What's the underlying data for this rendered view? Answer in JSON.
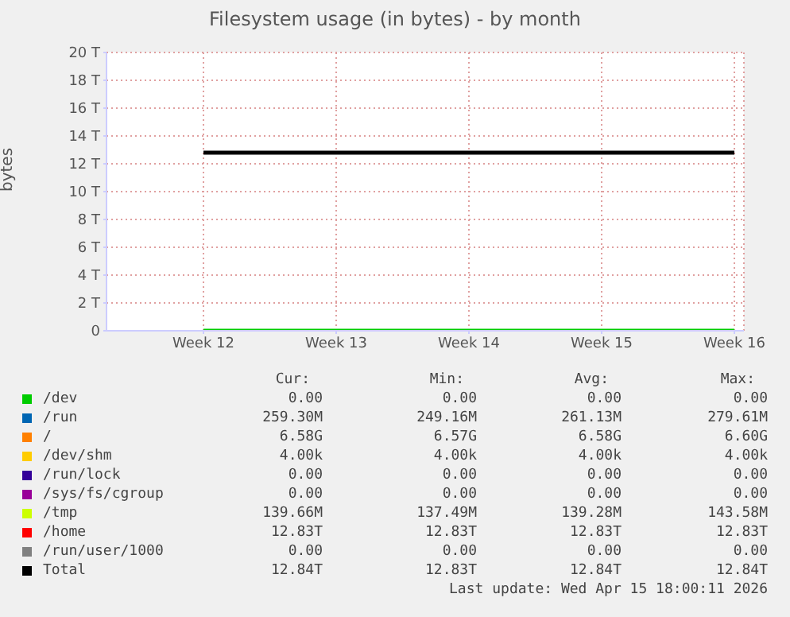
{
  "chart_data": {
    "type": "line",
    "title": "Filesystem usage (in bytes) - by month",
    "ylabel": "bytes",
    "categories": [
      "Week 12",
      "Week 13",
      "Week 14",
      "Week 15",
      "Week 16"
    ],
    "ylim": [
      0,
      20
    ],
    "yticks": [
      0,
      {
        "value": 2,
        "label": "2 T"
      },
      {
        "value": 4,
        "label": "4 T"
      },
      {
        "value": 6,
        "label": "6 T"
      },
      {
        "value": 8,
        "label": "8 T"
      },
      {
        "value": 10,
        "label": "10 T"
      },
      {
        "value": 12,
        "label": "12 T"
      },
      {
        "value": 14,
        "label": "14 T"
      },
      {
        "value": 16,
        "label": "16 T"
      },
      {
        "value": 18,
        "label": "18 T"
      },
      {
        "value": 20,
        "label": "20 T"
      }
    ],
    "grid": true,
    "legend": "bottom",
    "marker": "none",
    "line_style": "solid",
    "series": [
      {
        "name": "/dev",
        "color": "#00cc00",
        "values": [
          0,
          0,
          0,
          0,
          0
        ]
      },
      {
        "name": "/run",
        "color": "#0066b3",
        "values": [
          null,
          null,
          null,
          null,
          null
        ]
      },
      {
        "name": "/",
        "color": "#ff8000",
        "values": [
          null,
          null,
          null,
          null,
          null
        ]
      },
      {
        "name": "/dev/shm",
        "color": "#ffcc00",
        "values": [
          null,
          null,
          null,
          null,
          null
        ]
      },
      {
        "name": "/run/lock",
        "color": "#330099",
        "values": [
          null,
          null,
          null,
          null,
          null
        ]
      },
      {
        "name": "/sys/fs/cgroup",
        "color": "#990099",
        "values": [
          null,
          null,
          null,
          null,
          null
        ]
      },
      {
        "name": "/tmp",
        "color": "#ccff00",
        "values": [
          null,
          null,
          null,
          null,
          null
        ]
      },
      {
        "name": "/home",
        "color": "#ff0000",
        "values": [
          null,
          null,
          null,
          null,
          null
        ]
      },
      {
        "name": "/run/user/1000",
        "color": "#808080",
        "values": [
          null,
          null,
          null,
          null,
          null
        ]
      },
      {
        "name": "Total",
        "color": "#000000",
        "values": [
          12.8,
          12.8,
          12.8,
          12.8,
          12.8
        ]
      }
    ],
    "annotations": [
      "Cur:",
      "Min:",
      "Avg:",
      "Max:",
      "0.00",
      "0.00",
      "0.00",
      "0.00",
      "259.30M",
      "249.16M",
      "261.13M",
      "279.61M",
      "6.58G",
      "6.57G",
      "6.58G",
      "6.60G",
      "4.00k",
      "4.00k",
      "4.00k",
      "4.00k",
      "0.00",
      "0.00",
      "0.00",
      "0.00",
      "0.00",
      "0.00",
      "0.00",
      "0.00",
      "139.66M",
      "137.49M",
      "139.28M",
      "143.58M",
      "12.83T",
      "12.83T",
      "12.83T",
      "12.83T",
      "0.00",
      "0.00",
      "0.00",
      "0.00",
      "12.84T",
      "12.83T",
      "12.84T",
      "12.84T",
      "Last update: Wed Apr 15 18:00:11 2026"
    ]
  }
}
